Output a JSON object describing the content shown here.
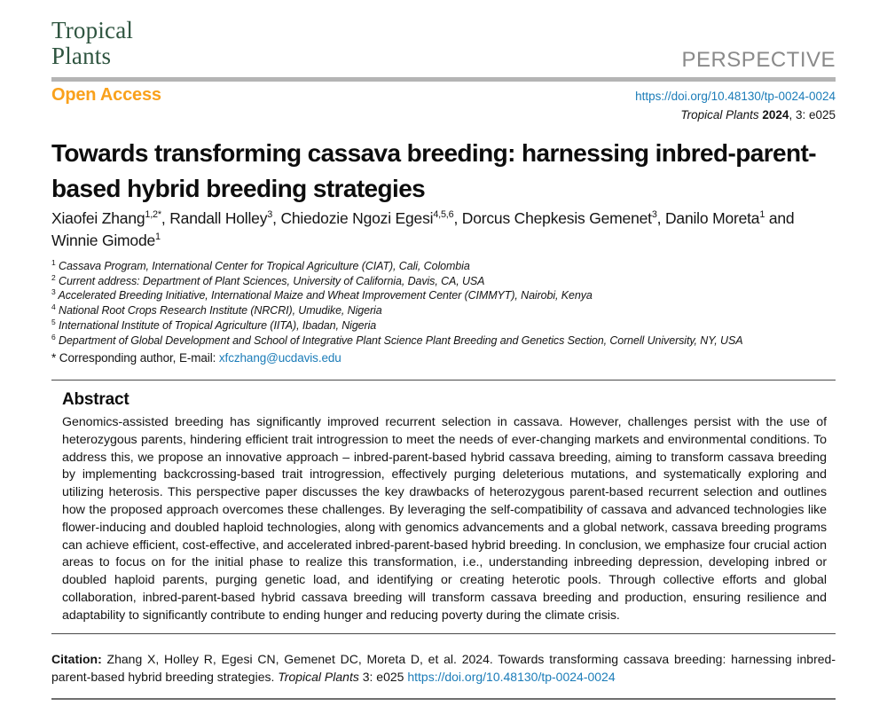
{
  "colors": {
    "logo_green": "#2f5540",
    "accent_orange": "#f9a11c",
    "link_blue": "#1b7cb8",
    "type_gray": "#8a8a8a",
    "bar_gray": "#b4b4b4"
  },
  "header": {
    "logo_line1": "Tropical",
    "logo_line2": "Plants",
    "article_type": "PERSPECTIVE",
    "open_access": "Open Access",
    "doi": "https://doi.org/10.48130/tp-0024-0024",
    "pub_line": [
      {
        "t": "Tropical Plants",
        "s": "i"
      },
      {
        "t": " "
      },
      {
        "t": "2024",
        "s": "b"
      },
      {
        "t": ", 3: e025"
      }
    ]
  },
  "article": {
    "title_lines": [
      "Towards transforming cassava breeding: harnessing inbred-parent-",
      "based hybrid breeding strategies"
    ],
    "authors": [
      {
        "t": "Xiaofei Zhang"
      },
      {
        "t": "1,2*",
        "sup": true
      },
      {
        "t": ", Randall Holley"
      },
      {
        "t": "3",
        "sup": true
      },
      {
        "t": ", Chiedozie Ngozi Egesi"
      },
      {
        "t": "4,5,6",
        "sup": true
      },
      {
        "t": ", Dorcus Chepkesis Gemenet"
      },
      {
        "t": "3",
        "sup": true
      },
      {
        "t": ", Danilo Moreta"
      },
      {
        "t": "1",
        "sup": true
      },
      {
        "t": " and Winnie Gimode"
      },
      {
        "t": "1",
        "sup": true
      }
    ],
    "affiliations": [
      [
        {
          "t": "1",
          "sup": true
        },
        {
          "t": " Cassava Program, International Center for Tropical Agriculture (CIAT), Cali, Colombia",
          "s": "i"
        }
      ],
      [
        {
          "t": "2",
          "sup": true
        },
        {
          "t": " Current address: Department of Plant Sciences, University of California, Davis, CA, USA",
          "s": "i"
        }
      ],
      [
        {
          "t": "3",
          "sup": true
        },
        {
          "t": " Accelerated Breeding Initiative, International Maize and Wheat Improvement Center (CIMMYT), Nairobi, Kenya",
          "s": "i"
        }
      ],
      [
        {
          "t": "4",
          "sup": true
        },
        {
          "t": " National Root Crops Research Institute (NRCRI), Umudike, Nigeria",
          "s": "i"
        }
      ],
      [
        {
          "t": "5",
          "sup": true
        },
        {
          "t": " International Institute of Tropical Agriculture (IITA), Ibadan, Nigeria",
          "s": "i"
        }
      ],
      [
        {
          "t": "6",
          "sup": true
        },
        {
          "t": " Department of Global Development and School of Integrative Plant Science Plant Breeding and Genetics Section, Cornell University, NY, USA",
          "s": "i"
        }
      ]
    ],
    "corresponding": [
      {
        "t": "* Corresponding author, E-mail: "
      },
      {
        "t": "xfczhang@ucdavis.edu",
        "s": "link",
        "n": "email-link"
      }
    ]
  },
  "abstract": {
    "heading": "Abstract",
    "text": "Genomics-assisted breeding has significantly improved recurrent selection in cassava. However, challenges persist with the use of heterozygous parents, hindering efficient trait introgression to meet the needs of ever-changing markets and environmental conditions. To address this, we propose an innovative approach – inbred-parent-based hybrid cassava breeding, aiming to transform cassava breeding by implementing backcrossing-based trait introgression, effectively purging deleterious mutations, and systematically exploring and utilizing heterosis. This perspective paper discusses the key drawbacks of heterozygous parent-based recurrent selection and outlines how the proposed approach overcomes these challenges. By leveraging the self-compatibility of cassava and advanced technologies like flower-inducing and doubled haploid technologies, along with genomics advancements and a global network, cassava breeding programs can achieve efficient, cost-effective, and accelerated inbred-parent-based hybrid breeding. In conclusion, we emphasize four crucial action areas to focus on for the initial phase to realize this transformation, i.e., understanding inbreeding depression, developing inbred or doubled haploid parents, purging genetic load, and identifying or creating heterotic pools. Through collective efforts and global collaboration, inbred-parent-based hybrid cassava breeding will transform cassava breeding and production, ensuring resilience and adaptability to significantly contribute to ending hunger and reducing poverty during the climate crisis."
  },
  "citation": [
    {
      "t": "Citation:",
      "s": "b"
    },
    {
      "t": "  Zhang X, Holley R, Egesi CN, Gemenet DC, Moreta D, et al. 2024. Towards transforming cassava breeding: harnessing inbred-parent-based hybrid breeding strategies. "
    },
    {
      "t": "Tropical Plants",
      "s": "i"
    },
    {
      "t": " 3: e025 "
    },
    {
      "t": "https://doi.org/10.48130/tp-0024-0024",
      "s": "link",
      "n": "citation-doi-link"
    }
  ]
}
